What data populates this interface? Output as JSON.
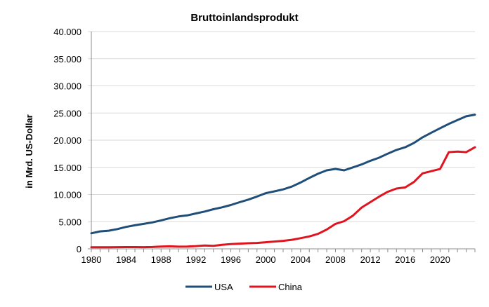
{
  "chart_data": {
    "type": "line",
    "title": "Bruttoinlandsprodukt",
    "xlabel": "",
    "ylabel": "in Mrd. US-Dollar",
    "xlim": [
      1980,
      2024
    ],
    "ylim": [
      0,
      40000
    ],
    "x_ticks": [
      1980,
      1984,
      1988,
      1992,
      1996,
      2000,
      2004,
      2008,
      2012,
      2016,
      2020
    ],
    "x_tick_labels": [
      "1980",
      "1984",
      "1988",
      "1992",
      "1996",
      "2000",
      "2004",
      "2008",
      "2012",
      "2016",
      "2020"
    ],
    "y_ticks": [
      0,
      5000,
      10000,
      15000,
      20000,
      25000,
      30000,
      35000,
      40000
    ],
    "y_tick_labels": [
      "0",
      "5.000",
      "10.000",
      "15.000",
      "20.000",
      "25.000",
      "30.000",
      "35.000",
      "40.000"
    ],
    "legend_position": "bottom",
    "x": [
      1980,
      1981,
      1982,
      1983,
      1984,
      1985,
      1986,
      1987,
      1988,
      1989,
      1990,
      1991,
      1992,
      1993,
      1994,
      1995,
      1996,
      1997,
      1998,
      1999,
      2000,
      2001,
      2002,
      2003,
      2004,
      2005,
      2006,
      2007,
      2008,
      2009,
      2010,
      2011,
      2012,
      2013,
      2014,
      2015,
      2016,
      2017,
      2018,
      2019,
      2020,
      2021,
      2022,
      2023,
      2024
    ],
    "series": [
      {
        "name": "USA",
        "color": "#1f4e79",
        "values": [
          2860,
          3210,
          3340,
          3640,
          4040,
          4340,
          4590,
          4870,
          5240,
          5640,
          5960,
          6160,
          6520,
          6860,
          7290,
          7640,
          8070,
          8580,
          9060,
          9630,
          10250,
          10580,
          10940,
          11460,
          12210,
          13040,
          13820,
          14450,
          14710,
          14450,
          15000,
          15540,
          16200,
          16780,
          17520,
          18200,
          18700,
          19480,
          20530,
          21380,
          22200,
          23000,
          23700,
          24400,
          24700
        ]
      },
      {
        "name": "China",
        "color": "#e0141e",
        "values": [
          300,
          290,
          300,
          310,
          320,
          320,
          310,
          330,
          410,
          460,
          400,
          420,
          500,
          620,
          560,
          740,
          860,
          960,
          1030,
          1090,
          1210,
          1340,
          1470,
          1660,
          1960,
          2290,
          2750,
          3550,
          4600,
          5100,
          6100,
          7600,
          8600,
          9600,
          10500,
          11100,
          11300,
          12300,
          13900,
          14300,
          14700,
          17800,
          17900,
          17800,
          18700
        ]
      }
    ]
  }
}
